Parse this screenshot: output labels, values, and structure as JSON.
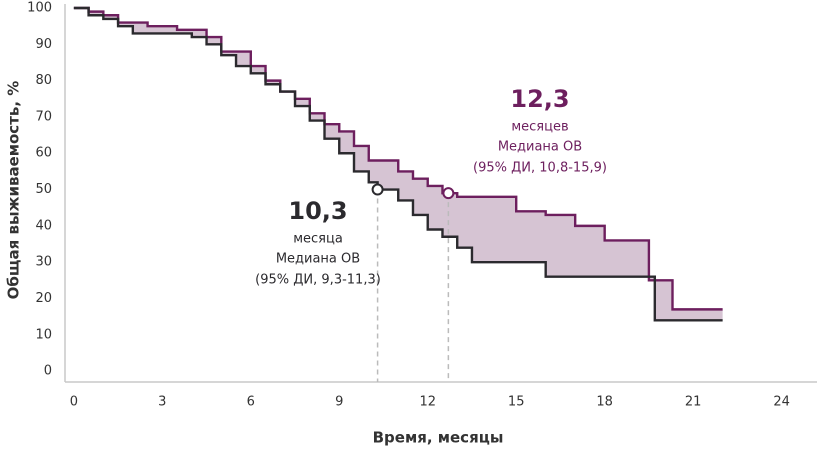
{
  "chart_data": {
    "type": "step",
    "xlabel": "Время, месяцы",
    "ylabel": "Общая выживаемость, %",
    "xlim": [
      -0.3,
      25.2
    ],
    "ylim": [
      -3,
      100
    ],
    "xticks": [
      0,
      3,
      6,
      9,
      12,
      15,
      18,
      21,
      24
    ],
    "yticks": [
      0,
      10,
      20,
      30,
      40,
      50,
      60,
      70,
      80,
      90,
      100
    ],
    "grid": false,
    "fill_between": "#d6c4d3",
    "series": [
      {
        "color": "#6d1f5e",
        "x": [
          0,
          0.5,
          1,
          1.5,
          2.5,
          3.5,
          4.5,
          5,
          6,
          6.5,
          7,
          7.5,
          8,
          8.5,
          9,
          9.5,
          10,
          11,
          11.5,
          12,
          12.5,
          13,
          15,
          16,
          17,
          18,
          19.5,
          20.3,
          22
        ],
        "values": [
          100,
          99,
          98,
          96,
          95,
          94,
          92,
          88,
          84,
          80,
          77,
          75,
          71,
          68,
          66,
          62,
          58,
          55,
          53,
          51,
          49,
          48,
          44,
          43,
          40,
          36,
          25,
          17,
          17
        ]
      },
      {
        "color": "#2b2a2e",
        "x": [
          0,
          0.5,
          1,
          1.5,
          2,
          3,
          4,
          4.5,
          5,
          5.5,
          6,
          6.5,
          7,
          7.5,
          8,
          8.5,
          9,
          9.5,
          10,
          10.3,
          11,
          11.5,
          12,
          12.5,
          13,
          13.5,
          16,
          19.7,
          22
        ],
        "values": [
          100,
          98,
          97,
          95,
          93,
          93,
          92,
          90,
          87,
          84,
          82,
          79,
          77,
          73,
          69,
          64,
          60,
          55,
          52,
          50,
          47,
          43,
          39,
          37,
          34,
          30,
          26,
          14,
          14
        ]
      }
    ],
    "annotations": [
      {
        "x": 12.7,
        "y": 49,
        "color": "#6d1f5e",
        "value": "12,3",
        "unit": "месяцев",
        "label": "Медиана ОВ",
        "ci": "(95% ДИ, 10,8-15,9)"
      },
      {
        "x": 10.3,
        "y": 50,
        "color": "#2b2a2e",
        "value": "10,3",
        "unit": "месяца",
        "label": "Медиана ОВ",
        "ci": "(95% ДИ, 9,3-11,3)"
      }
    ]
  }
}
